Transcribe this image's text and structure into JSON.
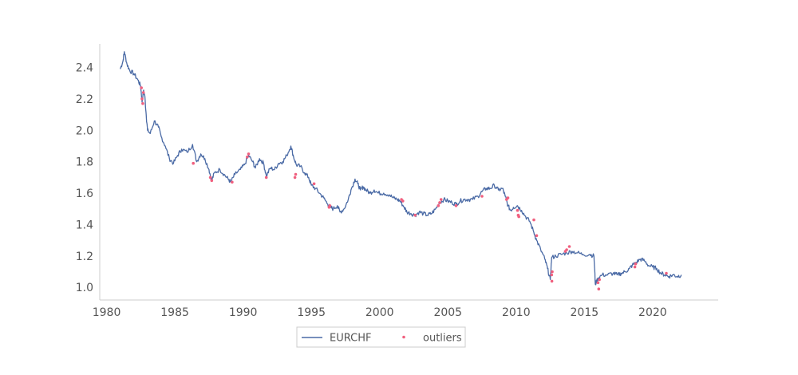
{
  "chart_data": {
    "type": "line",
    "title": "",
    "xlabel": "",
    "ylabel": "",
    "xlim": [
      1979.5,
      2024.8
    ],
    "ylim": [
      0.92,
      2.55
    ],
    "x_ticks": [
      1980,
      1985,
      1990,
      1995,
      2000,
      2005,
      2010,
      2015,
      2020
    ],
    "y_ticks": [
      1.0,
      1.2,
      1.4,
      1.6,
      1.8,
      2.0,
      2.2,
      2.4
    ],
    "x_tick_labels": [
      "1980",
      "1985",
      "1990",
      "1995",
      "2000",
      "2005",
      "2010",
      "2015",
      "2020"
    ],
    "y_tick_labels": [
      "1.0",
      "1.2",
      "1.4",
      "1.6",
      "1.8",
      "2.0",
      "2.2",
      "2.4"
    ],
    "grid": false,
    "legend_position": "bottom-center",
    "colors": {
      "line": "#4a6aa5",
      "outliers": "#f0607f",
      "axis": "#cccccc"
    },
    "series": [
      {
        "name": "EURCHF",
        "kind": "line",
        "points": [
          [
            1981.0,
            2.39
          ],
          [
            1981.2,
            2.44
          ],
          [
            1981.3,
            2.5
          ],
          [
            1981.5,
            2.42
          ],
          [
            1981.7,
            2.38
          ],
          [
            1982.0,
            2.36
          ],
          [
            1982.3,
            2.32
          ],
          [
            1982.5,
            2.28
          ],
          [
            1982.6,
            2.18
          ],
          [
            1982.7,
            2.25
          ],
          [
            1982.8,
            2.22
          ],
          [
            1982.9,
            2.1
          ],
          [
            1983.0,
            2.0
          ],
          [
            1983.2,
            1.98
          ],
          [
            1983.5,
            2.06
          ],
          [
            1983.8,
            2.02
          ],
          [
            1984.0,
            1.96
          ],
          [
            1984.3,
            1.9
          ],
          [
            1984.6,
            1.82
          ],
          [
            1984.9,
            1.79
          ],
          [
            1985.2,
            1.84
          ],
          [
            1985.5,
            1.88
          ],
          [
            1985.9,
            1.86
          ],
          [
            1986.3,
            1.91
          ],
          [
            1986.6,
            1.8
          ],
          [
            1986.9,
            1.85
          ],
          [
            1987.2,
            1.82
          ],
          [
            1987.5,
            1.75
          ],
          [
            1987.7,
            1.68
          ],
          [
            1987.9,
            1.73
          ],
          [
            1988.3,
            1.75
          ],
          [
            1988.6,
            1.72
          ],
          [
            1988.9,
            1.69
          ],
          [
            1989.1,
            1.67
          ],
          [
            1989.4,
            1.72
          ],
          [
            1989.8,
            1.75
          ],
          [
            1990.1,
            1.78
          ],
          [
            1990.4,
            1.84
          ],
          [
            1990.7,
            1.8
          ],
          [
            1990.9,
            1.76
          ],
          [
            1991.2,
            1.82
          ],
          [
            1991.5,
            1.79
          ],
          [
            1991.7,
            1.71
          ],
          [
            1992.0,
            1.76
          ],
          [
            1992.3,
            1.75
          ],
          [
            1992.6,
            1.79
          ],
          [
            1992.9,
            1.8
          ],
          [
            1993.2,
            1.84
          ],
          [
            1993.5,
            1.9
          ],
          [
            1993.7,
            1.83
          ],
          [
            1993.9,
            1.78
          ],
          [
            1994.2,
            1.77
          ],
          [
            1994.5,
            1.73
          ],
          [
            1994.8,
            1.7
          ],
          [
            1995.0,
            1.65
          ],
          [
            1995.3,
            1.63
          ],
          [
            1995.6,
            1.6
          ],
          [
            1995.9,
            1.57
          ],
          [
            1996.2,
            1.53
          ],
          [
            1996.4,
            1.51
          ],
          [
            1996.6,
            1.5
          ],
          [
            1996.9,
            1.52
          ],
          [
            1997.1,
            1.48
          ],
          [
            1997.4,
            1.5
          ],
          [
            1997.7,
            1.56
          ],
          [
            1997.9,
            1.62
          ],
          [
            1998.2,
            1.69
          ],
          [
            1998.4,
            1.66
          ],
          [
            1998.6,
            1.62
          ],
          [
            1998.8,
            1.64
          ],
          [
            1999.0,
            1.62
          ],
          [
            1999.3,
            1.6
          ],
          [
            1999.6,
            1.62
          ],
          [
            1999.9,
            1.6
          ],
          [
            2000.3,
            1.6
          ],
          [
            2000.7,
            1.59
          ],
          [
            2001.0,
            1.57
          ],
          [
            2001.3,
            1.56
          ],
          [
            2001.5,
            1.55
          ],
          [
            2001.8,
            1.51
          ],
          [
            2002.0,
            1.48
          ],
          [
            2002.3,
            1.47
          ],
          [
            2002.6,
            1.46
          ],
          [
            2002.9,
            1.48
          ],
          [
            2003.2,
            1.47
          ],
          [
            2003.5,
            1.46
          ],
          [
            2003.8,
            1.47
          ],
          [
            2004.1,
            1.5
          ],
          [
            2004.4,
            1.54
          ],
          [
            2004.7,
            1.56
          ],
          [
            2005.0,
            1.55
          ],
          [
            2005.3,
            1.54
          ],
          [
            2005.6,
            1.53
          ],
          [
            2005.9,
            1.55
          ],
          [
            2006.2,
            1.56
          ],
          [
            2006.5,
            1.56
          ],
          [
            2006.8,
            1.56
          ],
          [
            2007.2,
            1.58
          ],
          [
            2007.5,
            1.61
          ],
          [
            2007.8,
            1.63
          ],
          [
            2008.1,
            1.63
          ],
          [
            2008.4,
            1.65
          ],
          [
            2008.7,
            1.62
          ],
          [
            2009.0,
            1.63
          ],
          [
            2009.2,
            1.58
          ],
          [
            2009.4,
            1.52
          ],
          [
            2009.6,
            1.49
          ],
          [
            2009.8,
            1.51
          ],
          [
            2010.1,
            1.52
          ],
          [
            2010.4,
            1.49
          ],
          [
            2010.7,
            1.45
          ],
          [
            2011.0,
            1.42
          ],
          [
            2011.3,
            1.35
          ],
          [
            2011.5,
            1.3
          ],
          [
            2011.8,
            1.24
          ],
          [
            2012.1,
            1.18
          ],
          [
            2012.3,
            1.12
          ],
          [
            2012.5,
            1.05
          ],
          [
            2012.6,
            1.19
          ],
          [
            2012.9,
            1.2
          ],
          [
            2013.3,
            1.21
          ],
          [
            2013.7,
            1.22
          ],
          [
            2014.1,
            1.23
          ],
          [
            2014.5,
            1.22
          ],
          [
            2014.9,
            1.21
          ],
          [
            2015.4,
            1.21
          ],
          [
            2015.7,
            1.2
          ],
          [
            2015.8,
            1.02
          ],
          [
            2016.0,
            1.06
          ],
          [
            2016.3,
            1.08
          ],
          [
            2016.7,
            1.08
          ],
          [
            2017.1,
            1.09
          ],
          [
            2017.4,
            1.08
          ],
          [
            2017.7,
            1.09
          ],
          [
            2018.0,
            1.1
          ],
          [
            2018.3,
            1.12
          ],
          [
            2018.5,
            1.14
          ],
          [
            2018.8,
            1.16
          ],
          [
            2019.1,
            1.18
          ],
          [
            2019.4,
            1.17
          ],
          [
            2019.7,
            1.14
          ],
          [
            2020.0,
            1.13
          ],
          [
            2020.3,
            1.12
          ],
          [
            2020.6,
            1.09
          ],
          [
            2020.9,
            1.08
          ],
          [
            2021.2,
            1.07
          ],
          [
            2021.5,
            1.08
          ],
          [
            2021.8,
            1.07
          ],
          [
            2022.1,
            1.08
          ]
        ]
      },
      {
        "name": "outliers",
        "kind": "scatter",
        "points": [
          [
            1982.55,
            2.27
          ],
          [
            1982.6,
            2.2
          ],
          [
            1982.65,
            2.17
          ],
          [
            1982.7,
            2.24
          ],
          [
            1986.35,
            1.79
          ],
          [
            1987.6,
            1.7
          ],
          [
            1987.7,
            1.68
          ],
          [
            1989.2,
            1.67
          ],
          [
            1990.3,
            1.83
          ],
          [
            1990.4,
            1.85
          ],
          [
            1991.7,
            1.7
          ],
          [
            1993.8,
            1.7
          ],
          [
            1993.85,
            1.72
          ],
          [
            1995.2,
            1.66
          ],
          [
            1996.3,
            1.51
          ],
          [
            1996.35,
            1.52
          ],
          [
            2001.6,
            1.56
          ],
          [
            2001.7,
            1.55
          ],
          [
            2002.6,
            1.46
          ],
          [
            2004.3,
            1.52
          ],
          [
            2004.4,
            1.54
          ],
          [
            2004.5,
            1.56
          ],
          [
            2005.6,
            1.52
          ],
          [
            2007.5,
            1.58
          ],
          [
            2009.3,
            1.56
          ],
          [
            2009.4,
            1.57
          ],
          [
            2010.1,
            1.49
          ],
          [
            2010.15,
            1.46
          ],
          [
            2010.2,
            1.45
          ],
          [
            2011.3,
            1.43
          ],
          [
            2011.5,
            1.33
          ],
          [
            2012.6,
            1.08
          ],
          [
            2012.62,
            1.04
          ],
          [
            2012.64,
            1.1
          ],
          [
            2013.6,
            1.23
          ],
          [
            2013.7,
            1.24
          ],
          [
            2013.9,
            1.26
          ],
          [
            2016.0,
            1.03
          ],
          [
            2016.05,
            0.99
          ],
          [
            2016.1,
            1.05
          ],
          [
            2018.7,
            1.13
          ],
          [
            2018.75,
            1.15
          ],
          [
            2021.0,
            1.09
          ]
        ]
      }
    ]
  },
  "legend": {
    "line_label": "EURCHF",
    "scatter_label": "outliers"
  }
}
